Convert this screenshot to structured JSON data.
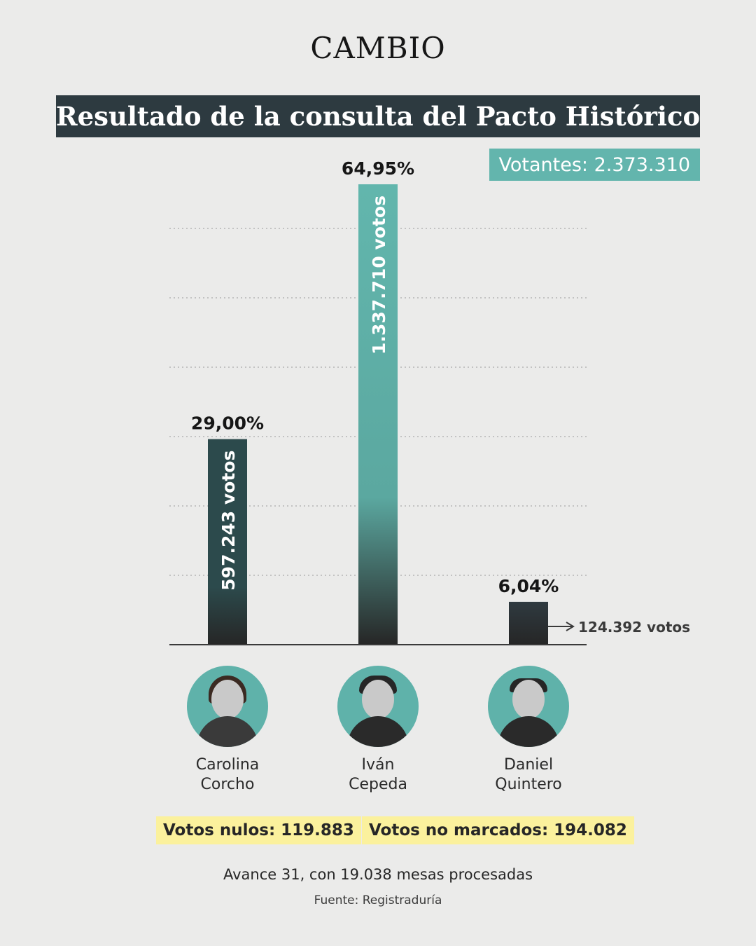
{
  "brand": "CAMBIO",
  "title": "Resultado de la consulta del Pacto Histórico",
  "voters_label": "Votantes: 2.373.310",
  "chart_data": {
    "type": "bar",
    "title": "Resultado de la consulta del Pacto Histórico",
    "categories": [
      "Carolina Corcho",
      "Iván Cepeda",
      "Daniel Quintero"
    ],
    "values": [
      29.0,
      64.95,
      6.04
    ],
    "value_labels": [
      "29,00%",
      "64,95%",
      "6,04%"
    ],
    "votes": [
      597243,
      1337710,
      124392
    ],
    "vote_labels": [
      "597.243 votos",
      "1.337.710 votos",
      "124.392 votos"
    ],
    "ylim": [
      0,
      70
    ],
    "grid": true,
    "colors": {
      "carolina": "#2c4a4c",
      "ivan": "#62b6ad",
      "daniel": "#2b3238",
      "base": "#2a2a2a"
    }
  },
  "candidates": [
    {
      "first": "Carolina",
      "last": "Corcho"
    },
    {
      "first": "Iván",
      "last": "Cepeda"
    },
    {
      "first": "Daniel",
      "last": "Quintero"
    }
  ],
  "null_votes_label": "Votos nulos: 119.883",
  "unmarked_votes_label": "Votos no marcados: 194.082",
  "progress_note": "Avance 31, con 19.038 mesas procesadas",
  "source": "Fuente: Registraduría"
}
